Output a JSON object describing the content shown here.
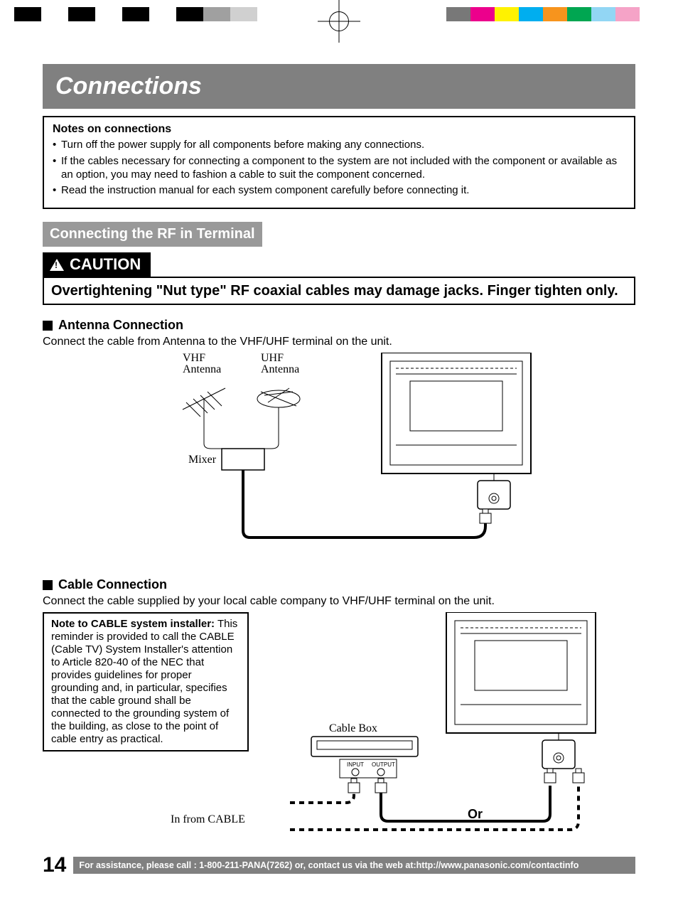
{
  "regmarks": {
    "bw": [
      "#000000",
      "#ffffff",
      "#000000",
      "#ffffff",
      "#000000",
      "#ffffff",
      "#000000",
      "#a0a0a0",
      "#d0d0d0"
    ],
    "color": [
      "#787878",
      "#ec008c",
      "#fff200",
      "#00aeef",
      "#f7941d",
      "#00a651",
      "#92d6f4",
      "#f5a3c7",
      "#ffffff"
    ]
  },
  "title": "Connections",
  "notes": {
    "heading": "Notes on connections",
    "items": [
      "Turn off the power supply for all components before making any connections.",
      "If the cables necessary for connecting a component to the system are not included with the component or available as an option, you may need to fashion a cable to suit the component concerned.",
      "Read the instruction manual for each system component carefully before connecting it."
    ]
  },
  "subhead": "Connecting the RF in Terminal",
  "caution": {
    "label": "CAUTION",
    "text": "Overtightening \"Nut type\" RF coaxial cables may damage jacks. Finger tighten only."
  },
  "antenna": {
    "heading": "Antenna Connection",
    "text": "Connect the cable from Antenna to the VHF/UHF terminal on the unit.",
    "labels": {
      "vhf": "VHF\nAntenna",
      "uhf": "UHF\nAntenna",
      "mixer": "Mixer"
    }
  },
  "cable": {
    "heading": "Cable Connection",
    "text": "Connect the cable supplied by your local cable company to VHF/UHF terminal on the unit.",
    "installer": {
      "title": "Note to CABLE system installer:",
      "body": "This reminder is provided to call the CABLE (Cable TV) System Installer's attention to Article 820-40 of the NEC that provides guidelines for proper grounding and, in particular, specifies that the cable ground shall be connected to the grounding system of the building, as close to the point of cable entry as practical."
    },
    "labels": {
      "cablebox": "Cable Box",
      "input": "INPUT",
      "output": "OUTPUT",
      "infrom": "In from CABLE",
      "or": "Or"
    }
  },
  "footer": {
    "page": "14",
    "bar": "For assistance, please call : 1-800-211-PANA(7262) or, contact us via the web at:http://www.panasonic.com/contactinfo"
  },
  "colors": {
    "gray_bar": "#808080",
    "gray_sub": "#999999",
    "black": "#000000",
    "white": "#ffffff"
  }
}
